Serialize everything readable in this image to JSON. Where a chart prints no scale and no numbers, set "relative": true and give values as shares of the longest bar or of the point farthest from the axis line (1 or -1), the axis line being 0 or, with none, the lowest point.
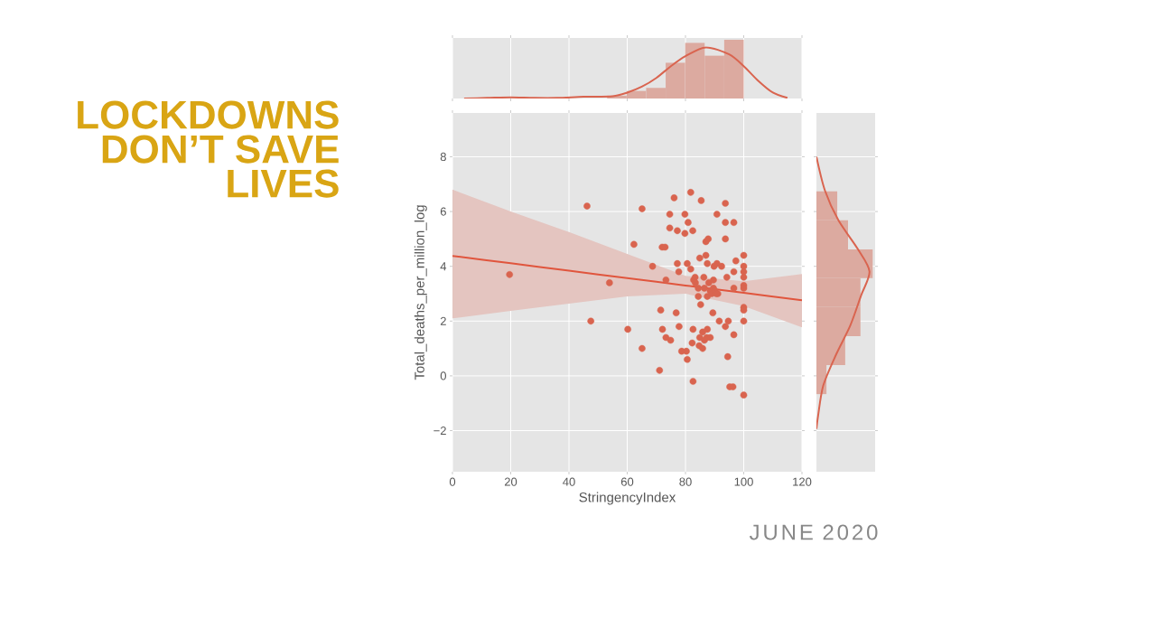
{
  "chart_data": [
    {
      "type": "scatter",
      "title": "LOCKDOWNS DON’T SAVE LIVES",
      "xlabel": "StringencyIndex",
      "ylabel": "Total_deaths_per_million_log",
      "annotations": [
        "JUNE 2020"
      ],
      "xlim": [
        0,
        120
      ],
      "ylim": [
        -3.5,
        9.6
      ],
      "xticks": [
        0,
        20,
        40,
        60,
        80,
        100,
        120
      ],
      "yticks": [
        {
          "value": -2,
          "label": "−2"
        },
        0,
        2,
        4,
        6,
        8
      ],
      "grid": true,
      "series": [
        {
          "marker": "circle",
          "color": "#d9644f",
          "x": [
            19.6,
            46.2,
            47.5,
            53.9,
            60.2,
            62.3,
            65.1,
            65.1,
            68.7,
            71.1,
            71.5,
            72.1,
            72.0,
            73.0,
            73.3,
            73.3,
            74.9,
            74.6,
            74.6,
            76.1,
            76.8,
            77.2,
            77.7,
            77.8,
            77.2,
            78.7,
            79.8,
            79.8,
            80.3,
            80.6,
            80.6,
            80.9,
            81.8,
            81.8,
            82.3,
            82.5,
            82.6,
            82.6,
            82.8,
            83.3,
            83.4,
            84.4,
            84.4,
            84.7,
            84.9,
            84.9,
            85.2,
            85.4,
            85.9,
            85.9,
            86.3,
            86.5,
            86.5,
            87.0,
            87.0,
            87.3,
            87.5,
            87.5,
            87.5,
            87.8,
            88.0,
            88.5,
            88.5,
            89.0,
            89.4,
            89.6,
            89.6,
            89.8,
            90.1,
            90.6,
            90.8,
            90.8,
            91.1,
            91.6,
            92.4,
            93.7,
            93.7,
            93.7,
            93.7,
            94.2,
            94.5,
            94.7,
            95.2,
            96.3,
            96.6,
            96.6,
            96.6,
            96.6,
            97.3,
            100,
            100,
            100,
            100,
            100,
            100,
            100,
            100,
            100,
            100
          ],
          "values": [
            3.7,
            6.2,
            2.0,
            3.4,
            1.7,
            4.8,
            6.1,
            1.0,
            4.0,
            0.2,
            2.4,
            1.7,
            4.7,
            4.7,
            3.5,
            1.4,
            1.3,
            5.9,
            5.4,
            6.5,
            2.3,
            5.3,
            3.8,
            1.8,
            4.1,
            0.9,
            5.2,
            5.9,
            0.9,
            4.1,
            0.6,
            5.6,
            6.7,
            3.9,
            1.2,
            5.3,
            1.7,
            -0.2,
            3.5,
            3.6,
            3.4,
            3.2,
            2.9,
            1.1,
            1.4,
            4.3,
            2.6,
            6.4,
            1.0,
            1.6,
            3.6,
            3.2,
            1.3,
            4.4,
            4.9,
            1.4,
            4.1,
            1.7,
            2.9,
            5.0,
            3.4,
            1.4,
            3.1,
            3.0,
            2.3,
            3.5,
            3.2,
            4.0,
            3.1,
            3.0,
            5.9,
            4.1,
            3.0,
            2.0,
            4.0,
            6.3,
            5.6,
            5.0,
            1.8,
            3.6,
            0.7,
            2.0,
            -0.4,
            -0.4,
            5.6,
            1.5,
            3.8,
            3.2,
            4.2,
            4.4,
            4.0,
            3.8,
            3.6,
            3.3,
            3.2,
            2.5,
            2.4,
            2.0,
            -0.7
          ]
        },
        {
          "type": "line",
          "color": "#e0553d",
          "x": [
            0,
            20,
            40,
            60,
            80,
            100,
            120
          ],
          "values": [
            4.38,
            4.11,
            3.84,
            3.57,
            3.3,
            3.03,
            2.76
          ],
          "lower": [
            2.1,
            2.37,
            2.64,
            2.9,
            3.0,
            2.55,
            1.77
          ],
          "upper": [
            6.8,
            6.0,
            5.25,
            4.45,
            3.65,
            3.45,
            3.72
          ]
        }
      ]
    },
    {
      "type": "histogram",
      "relative": true,
      "xlim": [
        0,
        120
      ],
      "xticks": [
        0,
        20,
        40,
        60,
        80,
        100,
        120
      ],
      "tick_labels": false,
      "grid": "x",
      "series": [
        {
          "color": "#dcaaa0",
          "bins": [
            19.6,
            26.3,
            33.0,
            39.7,
            46.4,
            53.1,
            59.8,
            66.5,
            73.2,
            79.9,
            86.6,
            93.3,
            100
          ],
          "values": [
            null,
            0,
            0,
            null,
            null,
            0.05,
            0.13,
            0.18,
            0.61,
            0.95,
            0.73,
            1
          ]
        },
        {
          "type": "line",
          "color": "#d9644f",
          "x": [
            4,
            12,
            20,
            28,
            36,
            45,
            55,
            60,
            65,
            70,
            75,
            80,
            87,
            95,
            100,
            105,
            110,
            115
          ],
          "values": [
            0,
            0.01,
            0.02,
            0.01,
            0.01,
            0.03,
            0.04,
            0.1,
            0.2,
            0.35,
            0.55,
            0.72,
            0.87,
            0.75,
            0.55,
            0.3,
            0.1,
            0.01
          ]
        }
      ]
    },
    {
      "type": "histogram",
      "relative": true,
      "orientation": "horizontal",
      "ylim": [
        -3.5,
        9.6
      ],
      "yticks": [
        -2,
        0,
        2,
        4,
        6,
        8
      ],
      "tick_labels": false,
      "grid": "y",
      "series": [
        {
          "color": "#dcaaa0",
          "bins": [
            -0.67,
            0.39,
            1.45,
            2.51,
            3.57,
            4.62,
            5.68,
            6.74
          ],
          "values": [
            0.18,
            0.51,
            0.78,
            0.78,
            1,
            0.56,
            0.37
          ]
        },
        {
          "type": "line",
          "color": "#d9644f",
          "x": [
            -1.94,
            -1.45,
            -0.36,
            0.74,
            1.84,
            2.93,
            3.81,
            4.64,
            5.68,
            6.77,
            8.0
          ],
          "values": [
            0,
            0.03,
            0.12,
            0.34,
            0.6,
            0.79,
            0.94,
            0.73,
            0.39,
            0.15,
            0
          ]
        }
      ]
    }
  ]
}
